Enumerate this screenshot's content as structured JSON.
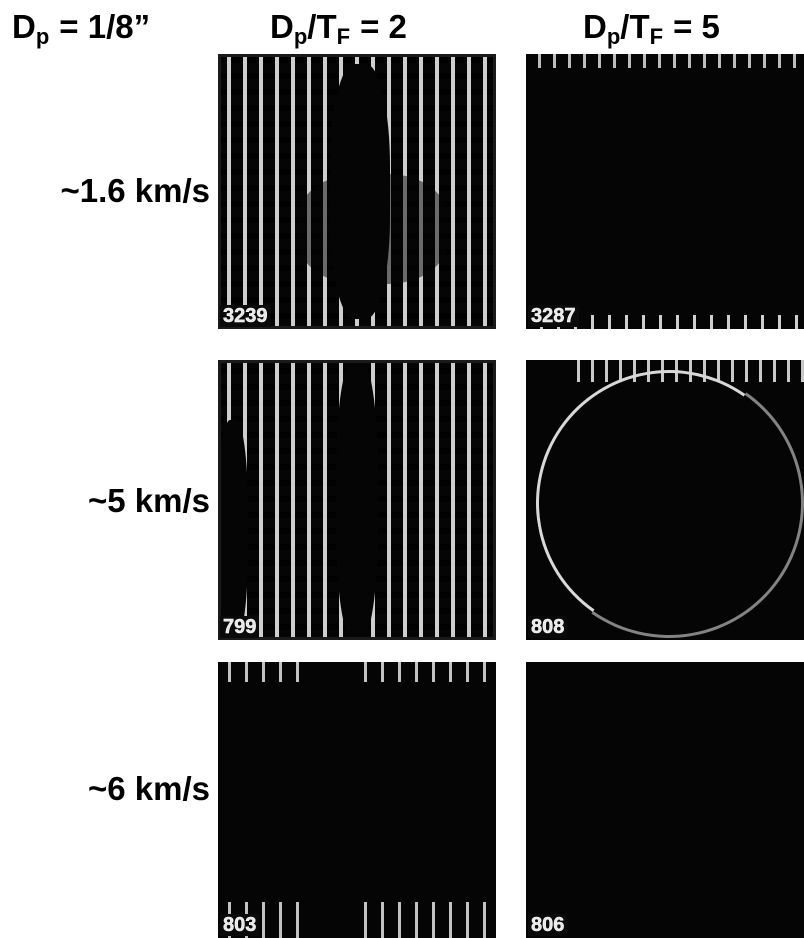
{
  "header": {
    "diameter_label": "D",
    "diameter_sub": "p",
    "diameter_value": "= 1/8”",
    "col1_main": "D",
    "col1_sub": "p",
    "col1_mid": "/T",
    "col1_sub2": "F",
    "col1_value": "= 2",
    "col2_main": "D",
    "col2_sub": "p",
    "col2_mid": "/T",
    "col2_sub2": "F",
    "col2_value": "= 5"
  },
  "rows": [
    {
      "label": "~1.6  km/s",
      "left_num": "3239",
      "right_num": "3287"
    },
    {
      "label": "~5  km/s",
      "left_num": "799",
      "right_num": "808"
    },
    {
      "label": "~6  km/s",
      "left_num": "803",
      "right_num": "806"
    }
  ]
}
